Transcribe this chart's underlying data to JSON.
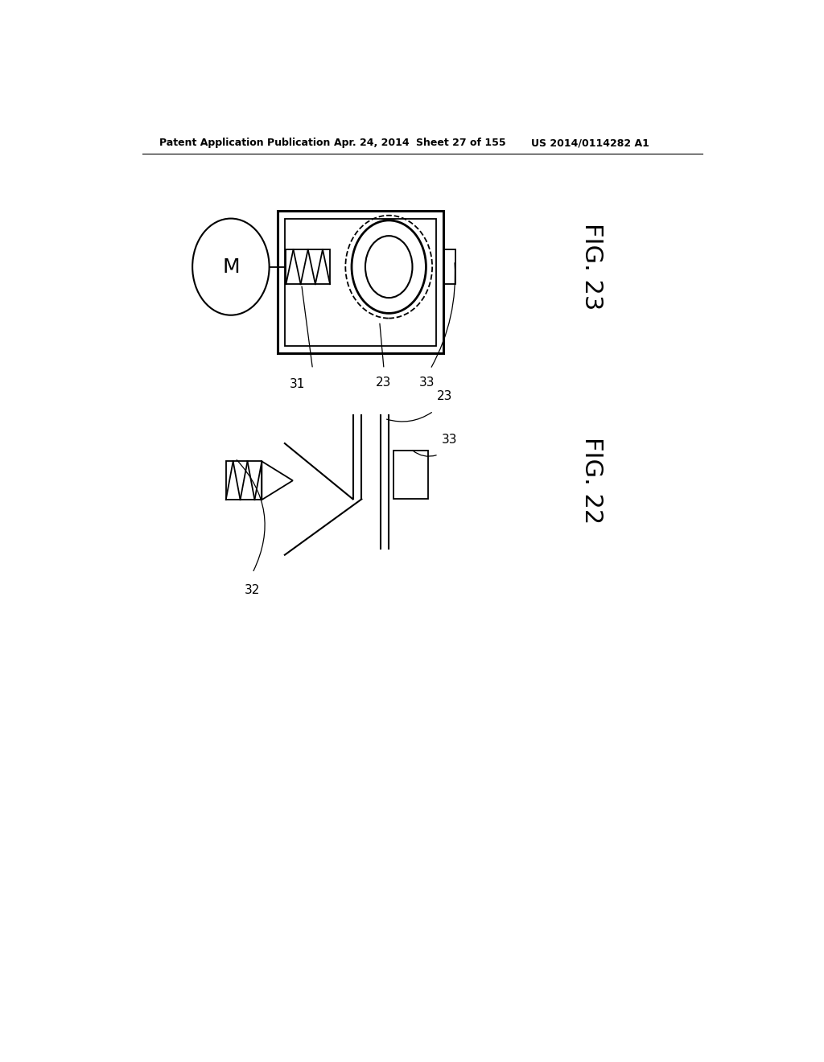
{
  "bg_color": "#ffffff",
  "line_color": "#000000",
  "header_text": "Patent Application Publication",
  "header_date": "Apr. 24, 2014  ",
  "header_sheet": "Sheet 27 of 155",
  "header_patent": "US 2014/0114282 A1",
  "fig23_label": "FIG. 23",
  "fig22_label": "FIG. 22",
  "label_31": "31",
  "label_23_top": "23",
  "label_33_top": "33",
  "label_23_bot": "23",
  "label_33_bot": "33",
  "label_32": "32"
}
